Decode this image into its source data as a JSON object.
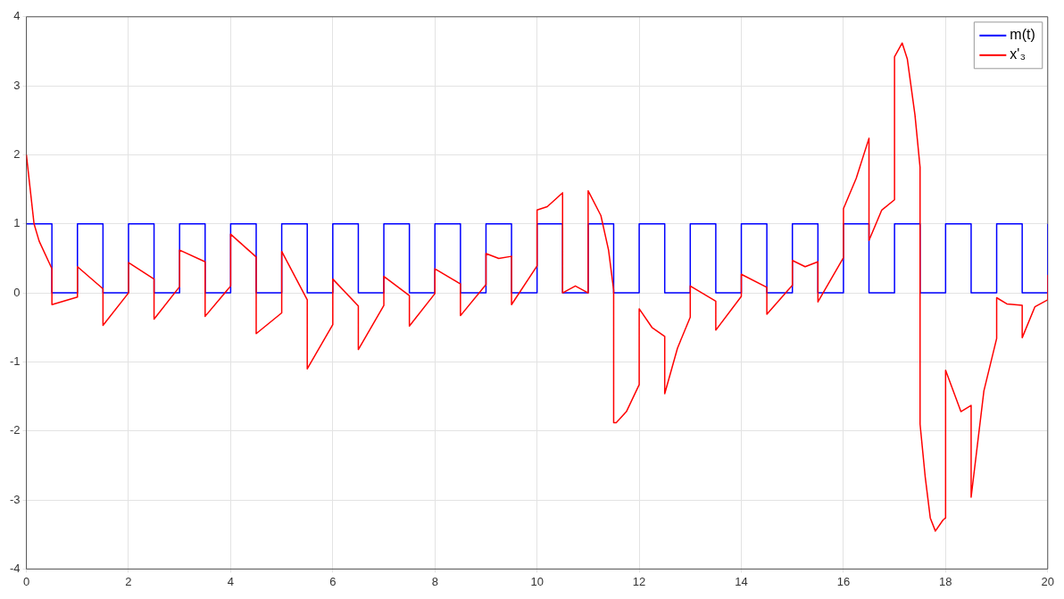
{
  "chart_data": {
    "type": "line",
    "xlim": [
      0,
      20
    ],
    "ylim": [
      -4,
      4
    ],
    "xticks": [
      0,
      2,
      4,
      6,
      8,
      10,
      12,
      14,
      16,
      18,
      20
    ],
    "yticks": [
      -4,
      -3,
      -2,
      -1,
      0,
      1,
      2,
      3,
      4
    ],
    "grid": true,
    "legend": "top right",
    "line_style": "solid",
    "marker": "none",
    "series": [
      {
        "name": "m(t)",
        "type": "step",
        "color": "#0000ff",
        "x": [
          0,
          0.5,
          1,
          1.5,
          2,
          2.5,
          3,
          3.5,
          4,
          4.5,
          5,
          5.5,
          6,
          6.5,
          7,
          7.5,
          8,
          8.5,
          9,
          9.5,
          10,
          10.5,
          11,
          11.5,
          12,
          12.5,
          13,
          13.5,
          14,
          14.5,
          15,
          15.5,
          16,
          16.5,
          17,
          17.5,
          18,
          18.5,
          19,
          19.5,
          20
        ],
        "values": [
          1,
          0,
          1,
          0,
          1,
          0,
          1,
          0,
          1,
          0,
          1,
          0,
          1,
          0,
          1,
          0,
          1,
          0,
          1,
          0,
          1,
          0,
          1,
          0,
          1,
          0,
          1,
          0,
          1,
          0,
          1,
          0,
          1,
          0,
          1,
          0,
          1,
          0,
          1,
          0,
          1
        ]
      },
      {
        "name": "x'₃",
        "type": "line",
        "color": "#ff0000",
        "x": [
          0,
          0.15,
          0.25,
          0.5,
          0.5,
          1,
          1,
          1.5,
          1.5,
          2,
          2,
          2.5,
          2.5,
          3,
          3,
          3.5,
          3.5,
          4,
          4,
          4.5,
          4.5,
          5,
          5,
          5.5,
          5.5,
          6,
          6,
          6.5,
          6.5,
          7,
          7,
          7.5,
          7.5,
          8,
          8,
          8.5,
          8.5,
          9,
          9,
          9.25,
          9.5,
          9.5,
          10,
          10,
          10.2,
          10.5,
          10.5,
          10.75,
          11,
          11,
          11.25,
          11.4,
          11.5,
          11.5,
          11.55,
          11.75,
          12,
          12,
          12.25,
          12.5,
          12.5,
          12.75,
          13,
          13,
          13.5,
          13.5,
          14,
          14,
          14.5,
          14.5,
          15,
          15,
          15.25,
          15.5,
          15.5,
          16,
          16,
          16.25,
          16.5,
          16.5,
          16.75,
          17,
          17,
          17.15,
          17.25,
          17.4,
          17.5,
          17.5,
          17.6,
          17.7,
          17.8,
          17.95,
          18,
          18,
          18.3,
          18.5,
          18.5,
          18.75,
          19,
          19,
          19.2,
          19.5,
          19.5,
          19.75,
          20,
          20
        ],
        "values": [
          2,
          1.0,
          0.75,
          0.35,
          -0.17,
          -0.06,
          0.38,
          0.06,
          -0.47,
          0,
          0.44,
          0.2,
          -0.38,
          0.09,
          0.62,
          0.45,
          -0.34,
          0.1,
          0.85,
          0.52,
          -0.59,
          -0.29,
          0.6,
          -0.1,
          -1.1,
          -0.46,
          0.2,
          -0.19,
          -0.82,
          -0.18,
          0.24,
          -0.04,
          -0.48,
          -0.01,
          0.35,
          0.13,
          -0.33,
          0.12,
          0.57,
          0.5,
          0.53,
          -0.17,
          0.39,
          1.2,
          1.25,
          1.45,
          0,
          0.1,
          0,
          1.48,
          1.12,
          0.62,
          0.04,
          -1.88,
          -1.88,
          -1.72,
          -1.33,
          -0.23,
          -0.5,
          -0.63,
          -1.46,
          -0.8,
          -0.35,
          0.1,
          -0.12,
          -0.54,
          -0.05,
          0.27,
          0.08,
          -0.31,
          0.11,
          0.47,
          0.38,
          0.45,
          -0.13,
          0.51,
          1.22,
          1.66,
          2.24,
          0.76,
          1.2,
          1.35,
          3.42,
          3.62,
          3.39,
          2.58,
          1.82,
          -1.9,
          -2.66,
          -3.26,
          -3.45,
          -3.29,
          -3.26,
          -1.12,
          -1.72,
          -1.63,
          -2.96,
          -1.42,
          -0.66,
          -0.07,
          -0.16,
          -0.18,
          -0.65,
          -0.2,
          -0.1,
          0.26
        ]
      }
    ]
  }
}
